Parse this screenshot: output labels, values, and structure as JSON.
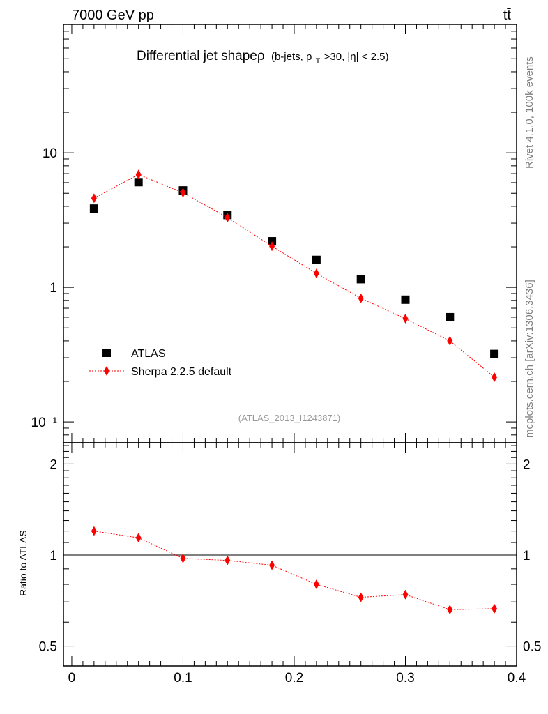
{
  "header": {
    "energy_label": "7000 GeV pp",
    "process_label": "tt̄"
  },
  "side_labels": {
    "rivet": "Rivet 4.1.0,  100k events",
    "mcplots": "mcplots.cern.ch [arXiv:1306.3436]"
  },
  "chart_data": [
    {
      "type": "scatter",
      "title": "Differential jet shapeρ (b-jets, p_T>30, |η| < 2.5)",
      "title_main": "Differential jet shapeρ",
      "title_cut_prefix": "(b-jets, p",
      "title_cut_sub": "T",
      "title_cut_suffix": ">30, |η| < 2.5)",
      "watermark": "(ATLAS_2013_I1243871)",
      "yscale": "log",
      "xlim": [
        -0.0075,
        0.4
      ],
      "ylim": [
        0.07,
        90
      ],
      "ytick_labels": [
        "10⁻¹",
        "1",
        "10"
      ],
      "legend_position": "bottom-left",
      "series": [
        {
          "name": "ATLAS",
          "marker": "square",
          "color": "#000000",
          "x": [
            0.02,
            0.06,
            0.1,
            0.14,
            0.18,
            0.22,
            0.26,
            0.3,
            0.34,
            0.38
          ],
          "y": [
            3.85,
            6.05,
            5.25,
            3.45,
            2.2,
            1.6,
            1.15,
            0.81,
            0.6,
            0.32
          ]
        },
        {
          "name": "Sherpa 2.2.5 default",
          "marker": "diamond",
          "line": "dotted",
          "color": "#ff0000",
          "x": [
            0.02,
            0.06,
            0.1,
            0.14,
            0.18,
            0.22,
            0.26,
            0.3,
            0.34,
            0.38
          ],
          "y": [
            4.6,
            6.9,
            5.05,
            3.3,
            2.02,
            1.27,
            0.83,
            0.585,
            0.4,
            0.215
          ]
        }
      ]
    },
    {
      "type": "line",
      "ylabel": "Ratio to ATLAS",
      "xlim": [
        -0.0075,
        0.4
      ],
      "ylim": [
        0.43,
        2.35
      ],
      "yscale": "log",
      "reference_line": 1,
      "ytick_labels": [
        "0.5",
        "1",
        "2"
      ],
      "xtick_labels": [
        "0",
        "0.1",
        "0.2",
        "0.3",
        "0.4"
      ],
      "series": [
        {
          "name": "Sherpa 2.2.5 default / ATLAS",
          "marker": "diamond",
          "line": "dotted",
          "color": "#ff0000",
          "x": [
            0.02,
            0.06,
            0.1,
            0.14,
            0.18,
            0.22,
            0.26,
            0.3,
            0.34,
            0.38
          ],
          "y": [
            1.2,
            1.14,
            0.975,
            0.96,
            0.925,
            0.8,
            0.725,
            0.74,
            0.66,
            0.665
          ]
        }
      ]
    }
  ]
}
